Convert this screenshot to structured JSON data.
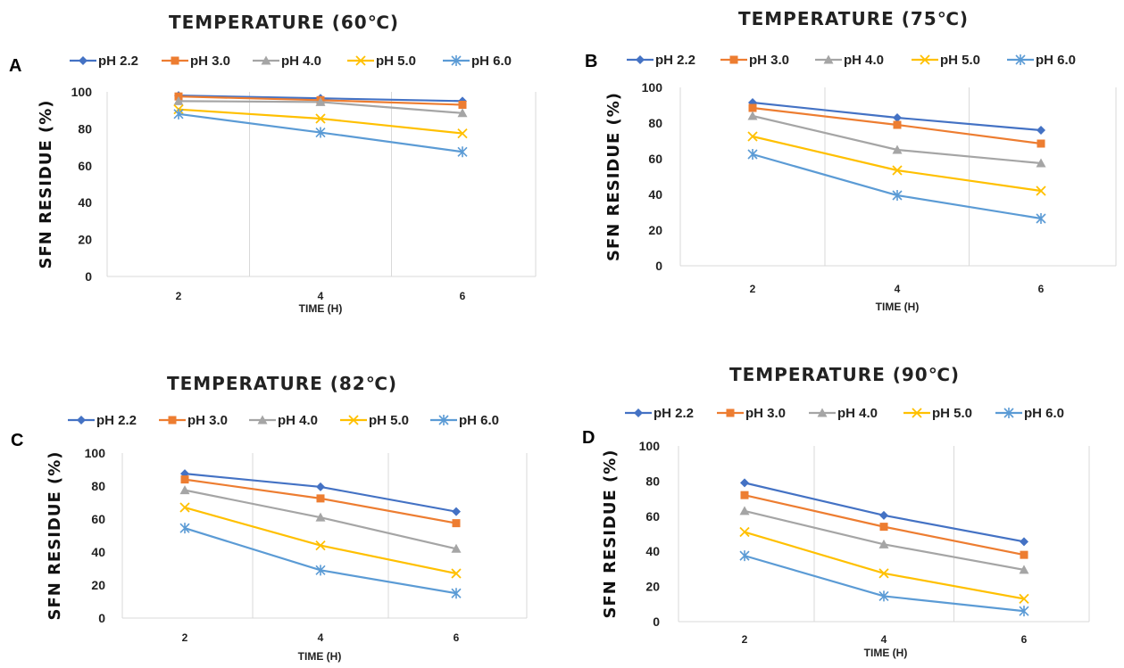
{
  "chart_data": [
    {
      "panel_letter": "A",
      "type": "line",
      "title": "TEMPERATURE (60℃)",
      "xlabel": "TIME (H)",
      "ylabel": "SFN RESIDUE (%)",
      "x": [
        2,
        4,
        6
      ],
      "ylim": [
        0,
        100
      ],
      "yticks": [
        0,
        20,
        40,
        60,
        80,
        100
      ],
      "grid": "vertical",
      "legend": "top",
      "series": [
        {
          "name": "pH 2.2",
          "color": "#4472C4",
          "marker": "diamond",
          "values": [
            98,
            96.5,
            95
          ]
        },
        {
          "name": "pH 3.0",
          "color": "#ED7D31",
          "marker": "square",
          "values": [
            97.5,
            95.5,
            93
          ]
        },
        {
          "name": "pH 4.0",
          "color": "#A5A5A5",
          "marker": "triangle",
          "values": [
            95,
            94.5,
            88.5
          ]
        },
        {
          "name": "pH 5.0",
          "color": "#FFC000",
          "marker": "x",
          "values": [
            90.5,
            85.5,
            77.5
          ]
        },
        {
          "name": "pH 6.0",
          "color": "#5B9BD5",
          "marker": "star",
          "values": [
            88,
            78,
            67.5
          ]
        }
      ]
    },
    {
      "panel_letter": "B",
      "type": "line",
      "title": "TEMPERATURE (75℃)",
      "xlabel": "TIME (H)",
      "ylabel": "SFN RESIDUE (%)",
      "x": [
        2,
        4,
        6
      ],
      "ylim": [
        0,
        100
      ],
      "yticks": [
        0,
        20,
        40,
        60,
        80,
        100
      ],
      "grid": "vertical",
      "legend": "top",
      "series": [
        {
          "name": "pH 2.2",
          "color": "#4472C4",
          "marker": "diamond",
          "values": [
            91.5,
            83,
            76
          ]
        },
        {
          "name": "pH 3.0",
          "color": "#ED7D31",
          "marker": "square",
          "values": [
            88.5,
            79,
            68.5
          ]
        },
        {
          "name": "pH 4.0",
          "color": "#A5A5A5",
          "marker": "triangle",
          "values": [
            84,
            65,
            57.5
          ]
        },
        {
          "name": "pH 5.0",
          "color": "#FFC000",
          "marker": "x",
          "values": [
            72.5,
            53.5,
            42
          ]
        },
        {
          "name": "pH 6.0",
          "color": "#5B9BD5",
          "marker": "star",
          "values": [
            62.5,
            39.5,
            26.5
          ]
        }
      ]
    },
    {
      "panel_letter": "C",
      "type": "line",
      "title": "TEMPERATURE (82℃)",
      "xlabel": "TIME (H)",
      "ylabel": "SFN RESIDUE (%)",
      "x": [
        2,
        4,
        6
      ],
      "ylim": [
        0,
        100
      ],
      "yticks": [
        0,
        20,
        40,
        60,
        80,
        100
      ],
      "grid": "vertical",
      "legend": "top",
      "series": [
        {
          "name": "pH 2.2",
          "color": "#4472C4",
          "marker": "diamond",
          "values": [
            87.5,
            79.5,
            64.5
          ]
        },
        {
          "name": "pH 3.0",
          "color": "#ED7D31",
          "marker": "square",
          "values": [
            84,
            72.5,
            57.5
          ]
        },
        {
          "name": "pH 4.0",
          "color": "#A5A5A5",
          "marker": "triangle",
          "values": [
            77.5,
            61,
            42
          ]
        },
        {
          "name": "pH 5.0",
          "color": "#FFC000",
          "marker": "x",
          "values": [
            67,
            44,
            27
          ]
        },
        {
          "name": "pH 6.0",
          "color": "#5B9BD5",
          "marker": "star",
          "values": [
            54.5,
            29,
            15
          ]
        }
      ]
    },
    {
      "panel_letter": "D",
      "type": "line",
      "title": "TEMPERATURE (90℃)",
      "xlabel": "TIME (H)",
      "ylabel": "SFN RESIDUE (%)",
      "x": [
        2,
        4,
        6
      ],
      "ylim": [
        0,
        100
      ],
      "yticks": [
        0,
        20,
        40,
        60,
        80,
        100
      ],
      "grid": "vertical",
      "legend": "top",
      "series": [
        {
          "name": "pH 2.2",
          "color": "#4472C4",
          "marker": "diamond",
          "values": [
            79,
            60.5,
            45.5
          ]
        },
        {
          "name": "pH 3.0",
          "color": "#ED7D31",
          "marker": "square",
          "values": [
            72,
            54,
            38
          ]
        },
        {
          "name": "pH 4.0",
          "color": "#A5A5A5",
          "marker": "triangle",
          "values": [
            63,
            44,
            29.5
          ]
        },
        {
          "name": "pH 5.0",
          "color": "#FFC000",
          "marker": "x",
          "values": [
            51,
            27.5,
            13
          ]
        },
        {
          "name": "pH 6.0",
          "color": "#5B9BD5",
          "marker": "star",
          "values": [
            37.5,
            14.5,
            6
          ]
        }
      ]
    }
  ]
}
